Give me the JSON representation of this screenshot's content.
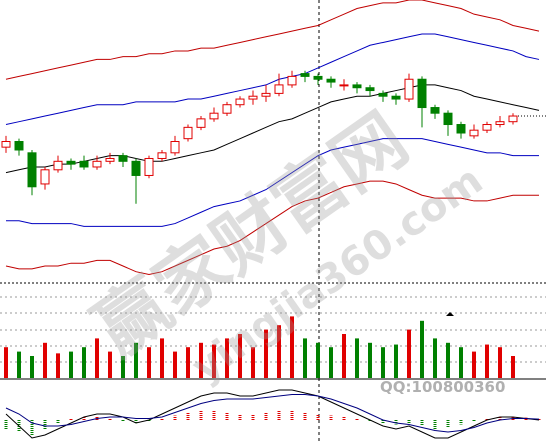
{
  "watermark": {
    "text": "赢家财富网",
    "url": "yingjia360.com"
  },
  "qq": "QQ:100800360",
  "chart_data": [
    {
      "type": "candlestick",
      "x": [
        0,
        1,
        2,
        3,
        4,
        5,
        6,
        7,
        8,
        9,
        10,
        11,
        12,
        13,
        14,
        15,
        16,
        17,
        18,
        19,
        20,
        21,
        22,
        23,
        24,
        25,
        26,
        27,
        28,
        29,
        30,
        31,
        32,
        33,
        34,
        35,
        36,
        37,
        38,
        39,
        40,
        41
      ],
      "open": [
        48,
        50,
        46,
        35,
        40,
        43,
        43,
        41,
        43,
        45,
        43,
        38,
        44,
        46,
        51,
        55,
        58,
        60,
        63,
        65,
        66,
        67,
        70,
        74,
        73,
        72,
        70,
        70,
        69,
        67,
        66,
        65,
        72,
        62,
        60,
        56,
        52,
        54,
        56,
        57,
        null,
        null
      ],
      "high": [
        52,
        51,
        47,
        41,
        45,
        44,
        45,
        45,
        46,
        46,
        44,
        45,
        47,
        52,
        56,
        59,
        62,
        64,
        66,
        68,
        70,
        74,
        75,
        75,
        74,
        73,
        72,
        71,
        70,
        68,
        67,
        74,
        73,
        63,
        61,
        57,
        56,
        57,
        59,
        60,
        null,
        null
      ],
      "low": [
        46,
        45,
        31,
        33,
        39,
        40,
        40,
        40,
        42,
        41,
        28,
        37,
        43,
        45,
        50,
        54,
        57,
        59,
        62,
        63,
        64,
        66,
        69,
        71,
        70,
        69,
        68,
        67,
        66,
        64,
        63,
        64,
        55,
        58,
        52,
        51,
        51,
        53,
        55,
        56,
        null,
        null
      ],
      "close": [
        50,
        47,
        34,
        40,
        43,
        42,
        41,
        43,
        44,
        43,
        38,
        44,
        46,
        50,
        55,
        58,
        60,
        63,
        65,
        66,
        67,
        70,
        73,
        73,
        72,
        71,
        70,
        69,
        68,
        66,
        65,
        72,
        62,
        60,
        56,
        53,
        54,
        56,
        57,
        59,
        null,
        null
      ],
      "up_color": "#e00000",
      "down_color": "#008000",
      "series": [
        {
          "color": "#c00000",
          "values": [
            72,
            73,
            74,
            75,
            76,
            77,
            78,
            79,
            79,
            80,
            80,
            81,
            81,
            82,
            82,
            83,
            83,
            84,
            85,
            86,
            87,
            88,
            89,
            90,
            91,
            93,
            95,
            97,
            98,
            99,
            99,
            100,
            100,
            99,
            98,
            97,
            95,
            94,
            93,
            91,
            90,
            89
          ]
        },
        {
          "color": "#0000c0",
          "values": [
            56,
            57,
            58,
            59,
            60,
            61,
            62,
            63,
            63,
            63,
            64,
            64,
            64,
            64,
            65,
            65,
            66,
            67,
            68,
            69,
            70,
            72,
            73,
            74,
            76,
            78,
            80,
            82,
            84,
            85,
            86,
            87,
            88,
            88,
            87,
            86,
            85,
            84,
            83,
            82,
            80,
            79
          ]
        },
        {
          "color": "#000000",
          "values": [
            39,
            40,
            41,
            41,
            42,
            42,
            43,
            44,
            45,
            45,
            44,
            43,
            43,
            44,
            45,
            46,
            47,
            49,
            51,
            53,
            55,
            57,
            58,
            60,
            62,
            64,
            65,
            66,
            66,
            67,
            68,
            69,
            70,
            70,
            69,
            68,
            66,
            65,
            64,
            63,
            62,
            61
          ]
        },
        {
          "color": "#0000c0",
          "values": [
            22,
            22,
            21,
            21,
            21,
            21,
            20,
            20,
            20,
            20,
            20,
            20,
            20,
            21,
            23,
            25,
            27,
            28,
            29,
            31,
            33,
            36,
            39,
            42,
            45,
            47,
            48,
            49,
            50,
            51,
            51,
            51,
            51,
            50,
            49,
            48,
            47,
            46,
            46,
            45,
            45,
            45
          ]
        },
        {
          "color": "#c00000",
          "values": [
            6,
            5,
            5,
            6,
            6,
            7,
            7,
            8,
            8,
            6,
            4,
            3,
            4,
            6,
            8,
            10,
            12,
            13,
            15,
            18,
            21,
            24,
            27,
            29,
            30,
            32,
            34,
            35,
            36,
            36,
            35,
            33,
            31,
            30,
            30,
            30,
            29,
            29,
            30,
            31,
            31,
            31
          ]
        }
      ],
      "ylim": [
        0,
        100
      ]
    },
    {
      "type": "bar",
      "x": [
        0,
        1,
        2,
        3,
        4,
        5,
        6,
        7,
        8,
        9,
        10,
        11,
        12,
        13,
        14,
        15,
        16,
        17,
        18,
        19,
        20,
        21,
        22,
        23,
        24,
        25,
        26,
        27,
        28,
        29,
        30,
        31,
        32,
        33,
        34,
        35,
        36,
        37,
        38,
        39,
        40,
        41
      ],
      "values": [
        35,
        30,
        25,
        40,
        28,
        30,
        35,
        45,
        30,
        25,
        40,
        35,
        45,
        30,
        35,
        40,
        38,
        45,
        50,
        35,
        55,
        60,
        70,
        45,
        40,
        35,
        50,
        45,
        40,
        35,
        38,
        55,
        65,
        45,
        40,
        35,
        30,
        38,
        35,
        25,
        null,
        null
      ],
      "ylim": [
        0,
        100
      ]
    },
    {
      "type": "macd",
      "x": [
        0,
        1,
        2,
        3,
        4,
        5,
        6,
        7,
        8,
        9,
        10,
        11,
        12,
        13,
        14,
        15,
        16,
        17,
        18,
        19,
        20,
        21,
        22,
        23,
        24,
        25,
        26,
        27,
        28,
        29,
        30,
        31,
        32,
        33,
        34,
        35,
        36,
        37,
        38,
        39,
        40,
        41
      ],
      "values": [
        -0.3,
        -0.4,
        -0.5,
        -0.3,
        -0.1,
        0.05,
        0.1,
        0.1,
        0.05,
        -0.05,
        -0.1,
        -0.05,
        0.05,
        0.15,
        0.25,
        0.3,
        0.3,
        0.25,
        0.2,
        0.2,
        0.25,
        0.3,
        0.3,
        0.25,
        0.2,
        0.15,
        0.1,
        0.05,
        -0.05,
        -0.1,
        -0.15,
        -0.1,
        -0.2,
        -0.3,
        -0.25,
        -0.15,
        -0.05,
        0.05,
        0.1,
        0.1,
        0.08,
        0.05
      ],
      "up_color": "#e00000",
      "down_color": "#008000",
      "series": [
        {
          "color": "#000000",
          "values": [
            0.2,
            -0.2,
            -0.6,
            -0.5,
            -0.3,
            -0.1,
            0.1,
            0.2,
            0.2,
            0.1,
            -0.1,
            0,
            0.2,
            0.4,
            0.6,
            0.8,
            0.9,
            0.9,
            0.8,
            0.8,
            0.9,
            1.0,
            1.0,
            0.9,
            0.8,
            0.6,
            0.4,
            0.2,
            0,
            -0.2,
            -0.3,
            -0.2,
            -0.4,
            -0.6,
            -0.6,
            -0.4,
            -0.2,
            0,
            0.1,
            0.1,
            0.05,
            0
          ]
        },
        {
          "color": "#000080",
          "values": [
            0.4,
            0.2,
            -0.1,
            -0.2,
            -0.2,
            -0.15,
            -0.05,
            0.05,
            0.1,
            0.1,
            0.05,
            0.05,
            0.1,
            0.25,
            0.4,
            0.55,
            0.65,
            0.7,
            0.7,
            0.7,
            0.75,
            0.8,
            0.85,
            0.85,
            0.8,
            0.7,
            0.55,
            0.4,
            0.2,
            0,
            -0.1,
            -0.15,
            -0.25,
            -0.35,
            -0.4,
            -0.35,
            -0.25,
            -0.1,
            0,
            0.05,
            0.05,
            0.03
          ]
        }
      ],
      "ylim": [
        -0.8,
        1.2
      ]
    }
  ]
}
